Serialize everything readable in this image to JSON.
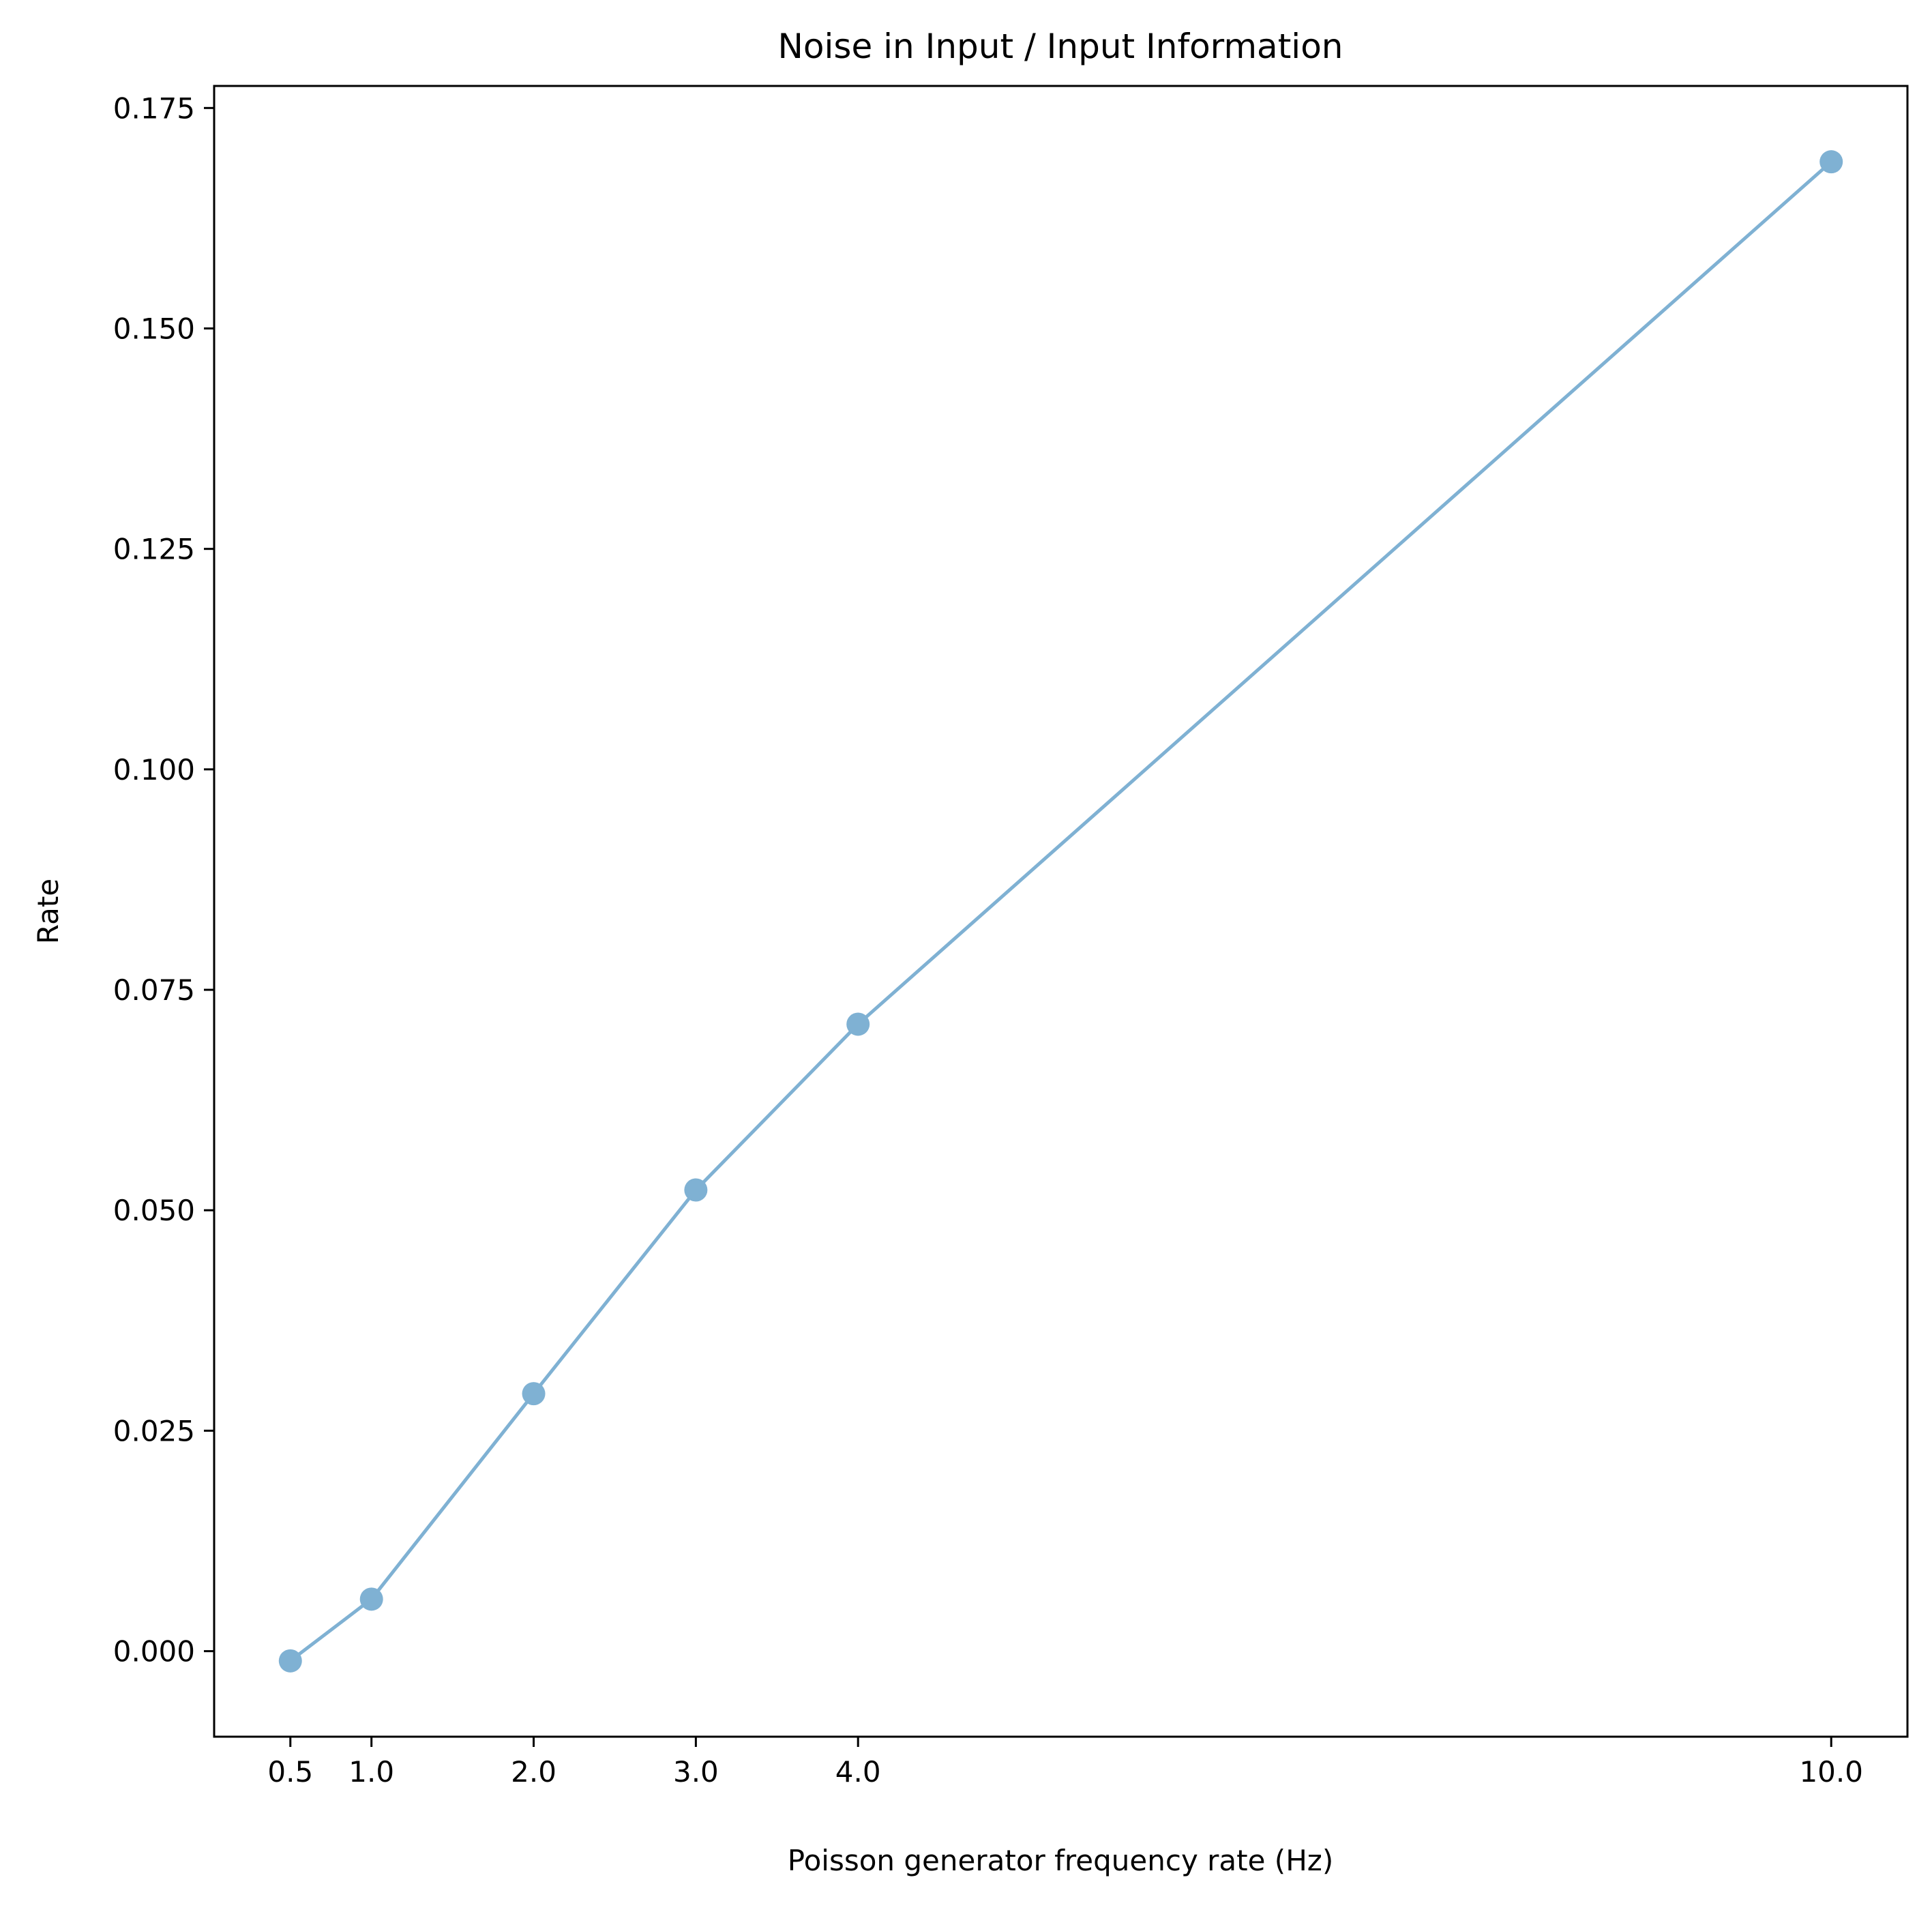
{
  "chart_data": {
    "type": "line",
    "title": "Noise in Input / Input Information",
    "xlabel": "Poisson generator frequency rate (Hz)",
    "ylabel": "Rate",
    "x": [
      0.5,
      1.0,
      2.0,
      3.0,
      4.0,
      10.0
    ],
    "x_tick_labels": [
      "0.5",
      "1.0",
      "2.0",
      "3.0",
      "4.0",
      "10.0"
    ],
    "series": [
      {
        "values": [
          -0.0011,
          0.0059,
          0.0292,
          0.0523,
          0.0711,
          0.1689
        ],
        "color": "#7fb1d3",
        "marker": "circle"
      }
    ],
    "y_ticks": [
      0.0,
      0.025,
      0.05,
      0.075,
      0.1,
      0.125,
      0.15,
      0.175
    ],
    "y_tick_labels": [
      "0.000",
      "0.025",
      "0.050",
      "0.075",
      "0.100",
      "0.125",
      "0.150",
      "0.175"
    ],
    "xlim": [
      0.03,
      10.47
    ],
    "ylim": [
      -0.0097,
      0.1775
    ],
    "grid": false,
    "legend": "none"
  }
}
